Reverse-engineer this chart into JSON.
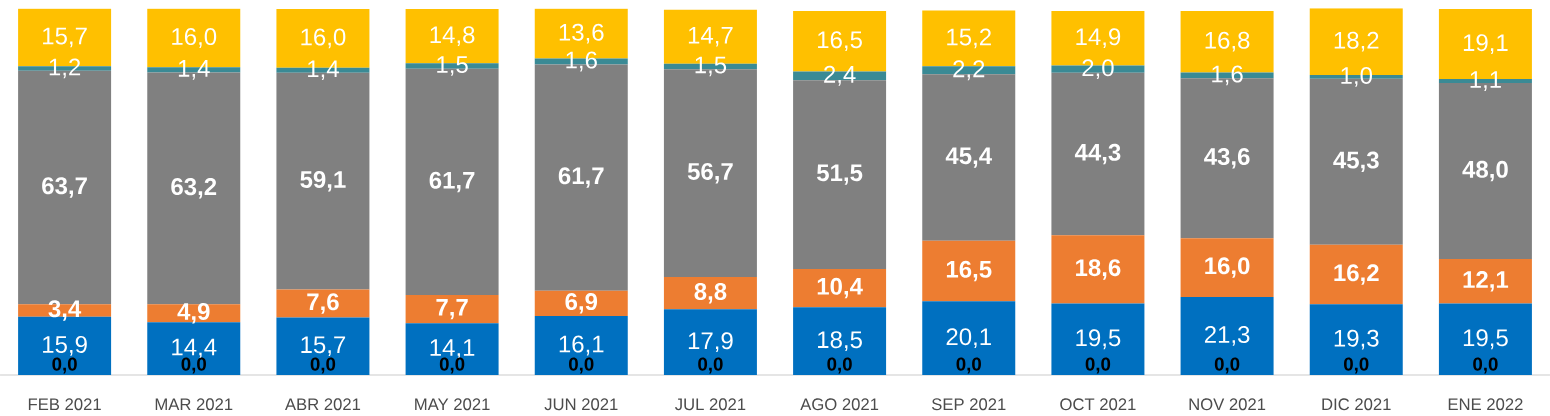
{
  "chart_data": {
    "type": "bar",
    "stacked": true,
    "categories": [
      "FEB 2021",
      "MAR 2021",
      "ABR 2021",
      "MAY 2021",
      "JUN 2021",
      "JUL 2021",
      "AGO 2021",
      "SEP 2021",
      "OCT 2021",
      "NOV 2021",
      "DIC 2021",
      "ENE 2022"
    ],
    "tick_labels": "x",
    "annotations": [
      {
        "text": "0,0",
        "x": "FEB 2021",
        "y": 0
      },
      {
        "text": "0,0",
        "x": "MAR 2021",
        "y": 0
      },
      {
        "text": "0,0",
        "x": "ABR 2021",
        "y": 0
      },
      {
        "text": "0,0",
        "x": "MAY 2021",
        "y": 0
      },
      {
        "text": "0,0",
        "x": "JUN 2021",
        "y": 0
      },
      {
        "text": "0,0",
        "x": "JUL 2021",
        "y": 0
      },
      {
        "text": "0,0",
        "x": "AGO 2021",
        "y": 0
      },
      {
        "text": "0,0",
        "x": "SEP 2021",
        "y": 0
      },
      {
        "text": "0,0",
        "x": "OCT 2021",
        "y": 0
      },
      {
        "text": "0,0",
        "x": "NOV 2021",
        "y": 0
      },
      {
        "text": "0,0",
        "x": "DIC 2021",
        "y": 0
      },
      {
        "text": "0,0",
        "x": "ENE 2022",
        "y": 0
      }
    ],
    "series": [
      {
        "color": "#0070c0",
        "values": [
          15.9,
          14.4,
          15.7,
          14.1,
          16.1,
          17.9,
          18.5,
          20.1,
          19.5,
          21.3,
          19.3,
          19.5
        ],
        "value_labels": [
          "15,9",
          "14,4",
          "15,7",
          "14,1",
          "16,1",
          "17,9",
          "18,5",
          "20,1",
          "19,5",
          "21,3",
          "19,3",
          "19,5"
        ]
      },
      {
        "color": "#ed7d31",
        "values": [
          3.4,
          4.9,
          7.6,
          7.7,
          6.9,
          8.8,
          10.4,
          16.5,
          18.6,
          16.0,
          16.2,
          12.1
        ],
        "value_labels": [
          "3,4",
          "4,9",
          "7,6",
          "7,7",
          "6,9",
          "8,8",
          "10,4",
          "16,5",
          "18,6",
          "16,0",
          "16,2",
          "12,1"
        ]
      },
      {
        "color": "#808080",
        "values": [
          63.7,
          63.2,
          59.1,
          61.7,
          61.7,
          56.7,
          51.5,
          45.4,
          44.3,
          43.6,
          45.3,
          48.0
        ],
        "value_labels": [
          "63,7",
          "63,2",
          "59,1",
          "61,7",
          "61,7",
          "56,7",
          "51,5",
          "45,4",
          "44,3",
          "43,6",
          "45,3",
          "48,0"
        ]
      },
      {
        "color": "#3a8a95",
        "values": [
          1.2,
          1.4,
          1.4,
          1.5,
          1.6,
          1.5,
          2.4,
          2.2,
          2.0,
          1.6,
          1.0,
          1.1
        ],
        "value_labels": [
          "1,2",
          "1,4",
          "1,4",
          "1,5",
          "1,6",
          "1,5",
          "2,4",
          "2,2",
          "2,0",
          "1,6",
          "1,0",
          "1,1"
        ]
      },
      {
        "color": "#ffc000",
        "values": [
          15.7,
          16.0,
          16.0,
          14.8,
          13.6,
          14.7,
          16.5,
          15.2,
          14.9,
          16.8,
          18.2,
          19.1
        ],
        "value_labels": [
          "15,7",
          "16,0",
          "16,0",
          "14,8",
          "13,6",
          "14,7",
          "16,5",
          "15,2",
          "14,9",
          "16,8",
          "18,2",
          "19,1"
        ]
      }
    ]
  }
}
